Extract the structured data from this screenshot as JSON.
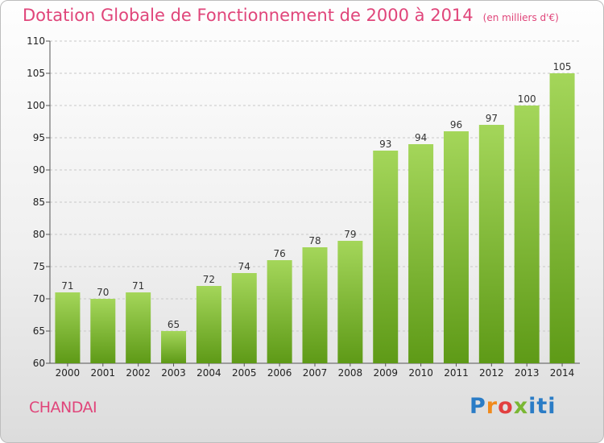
{
  "title": "Dotation Globale de Fonctionnement de 2000 à 2014",
  "unit_note": "(en milliers d'€)",
  "town": "CHANDAI",
  "logo_text": "Proxiti",
  "colors": {
    "title": "#e0457a",
    "bar_top": "#a4d65a",
    "bar_bottom": "#5e9a17",
    "grid": "#c8c8c8"
  },
  "chart_data": {
    "type": "bar",
    "categories": [
      "2000",
      "2001",
      "2002",
      "2003",
      "2004",
      "2005",
      "2006",
      "2007",
      "2008",
      "2009",
      "2010",
      "2011",
      "2012",
      "2013",
      "2014"
    ],
    "values": [
      71,
      70,
      71,
      65,
      72,
      74,
      76,
      78,
      79,
      93,
      94,
      96,
      97,
      100,
      105
    ],
    "title": "Dotation Globale de Fonctionnement de 2000 à 2014",
    "subtitle": "(en milliers d'€)",
    "xlabel": "",
    "ylabel": "",
    "ylim": [
      60,
      110
    ],
    "yticks": [
      60,
      65,
      70,
      75,
      80,
      85,
      90,
      95,
      100,
      105,
      110
    ],
    "grid": "horizontal dashed",
    "legend": "none"
  }
}
